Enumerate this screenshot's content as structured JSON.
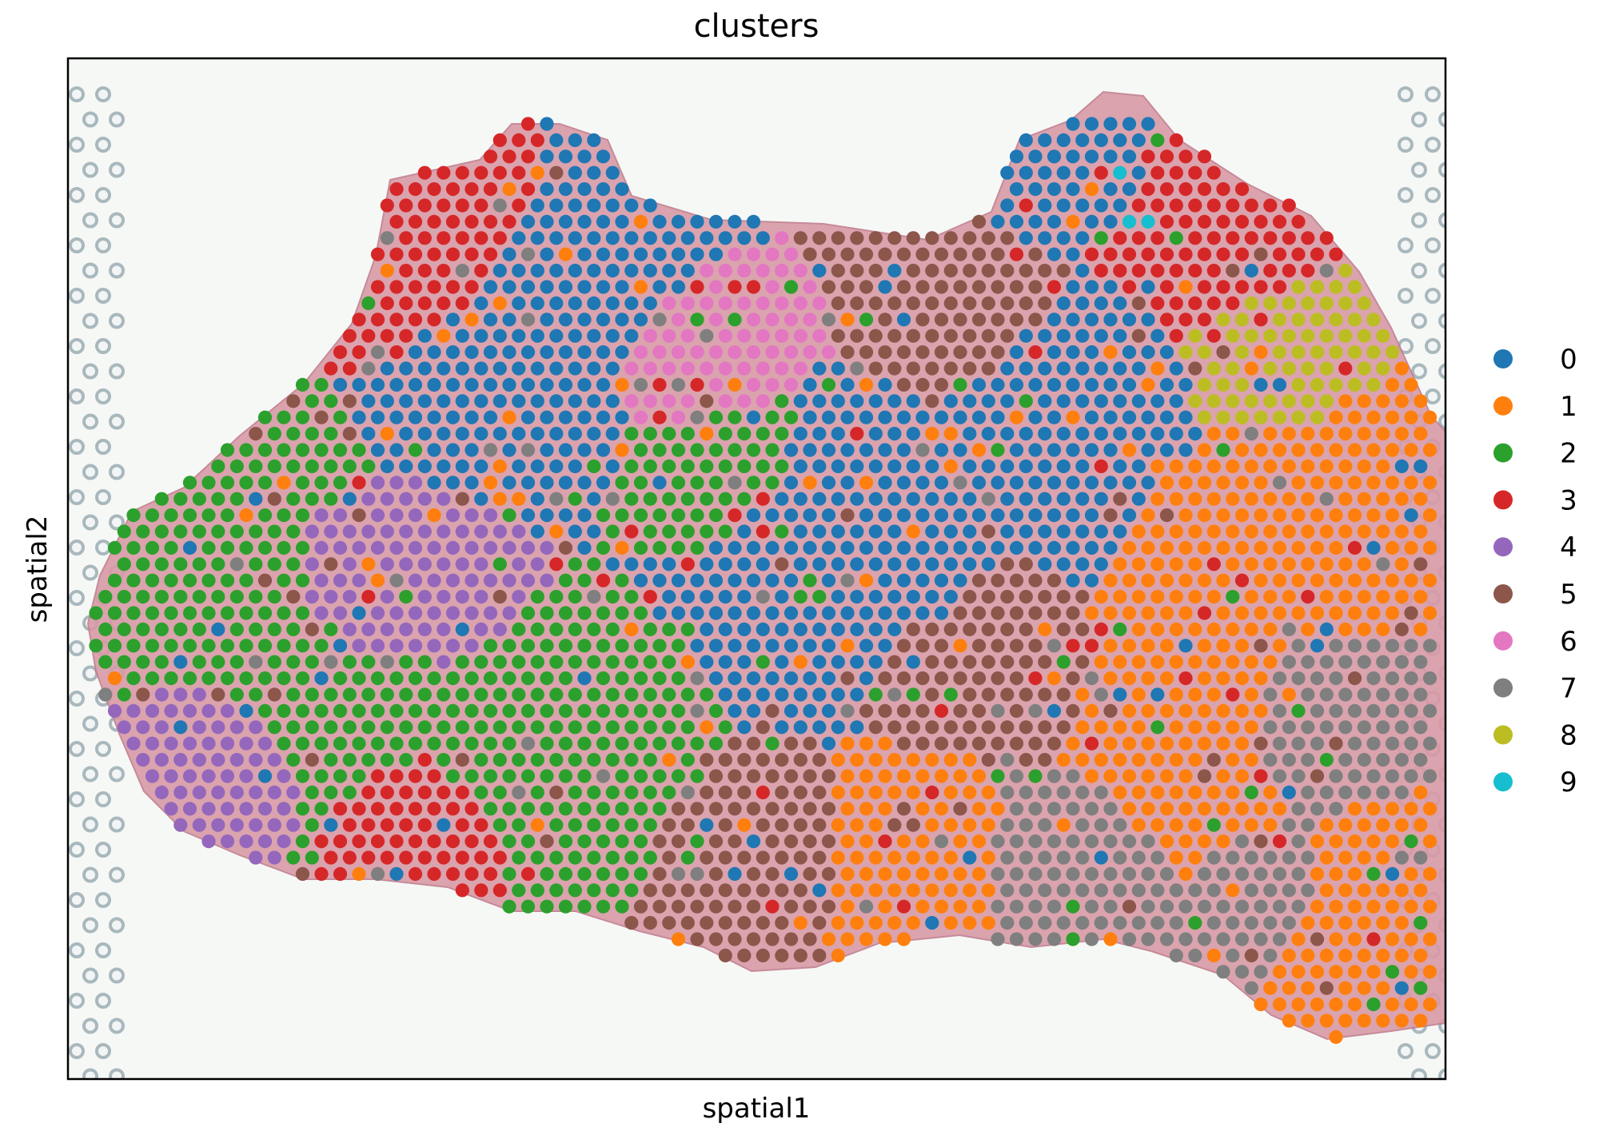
{
  "chart_data": {
    "type": "scatter",
    "title": "clusters",
    "xlabel": "spatial1",
    "ylabel": "spatial2",
    "xticks": [],
    "yticks": [],
    "grid": false,
    "legend_position": "right",
    "background": "H&E stained tissue image",
    "point_size_relative": "small circular spots on hexagonal lattice",
    "series": [
      {
        "name": "0",
        "color": "#1f77b4"
      },
      {
        "name": "1",
        "color": "#ff7f0e"
      },
      {
        "name": "2",
        "color": "#2ca02c"
      },
      {
        "name": "3",
        "color": "#d62728"
      },
      {
        "name": "4",
        "color": "#9467bd"
      },
      {
        "name": "5",
        "color": "#8c564b"
      },
      {
        "name": "6",
        "color": "#e377c2"
      },
      {
        "name": "7",
        "color": "#7f7f7f"
      },
      {
        "name": "8",
        "color": "#bcbd22"
      },
      {
        "name": "9",
        "color": "#17becf"
      }
    ]
  }
}
